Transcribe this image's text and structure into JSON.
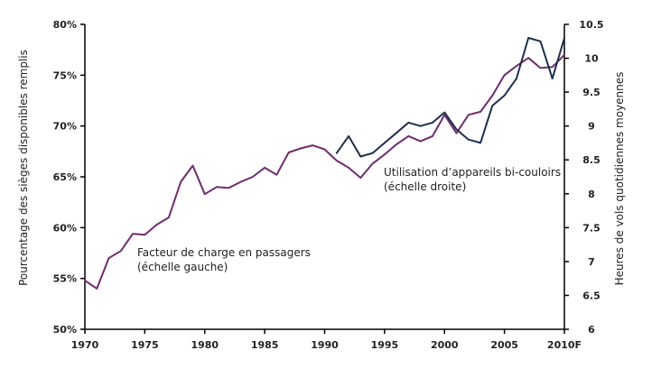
{
  "chart_data": {
    "type": "line",
    "title": "",
    "ylabel_left": "Pourcentage des sièges disponibles remplis",
    "ylabel_right": "Heures de vols quotidiennes moyennes",
    "xlim": [
      1970,
      2010
    ],
    "ylim_left": [
      50,
      80
    ],
    "ylim_right": [
      6,
      10.5
    ],
    "x_ticks": [
      {
        "value": 1970,
        "label": "1970"
      },
      {
        "value": 1975,
        "label": "1975"
      },
      {
        "value": 1980,
        "label": "1980"
      },
      {
        "value": 1985,
        "label": "1985"
      },
      {
        "value": 1990,
        "label": "1990"
      },
      {
        "value": 1995,
        "label": "1995"
      },
      {
        "value": 2000,
        "label": "2000"
      },
      {
        "value": 2005,
        "label": "2005"
      },
      {
        "value": 2010,
        "label": "2010F"
      }
    ],
    "y_ticks_left": [
      {
        "value": 50,
        "label": "50%"
      },
      {
        "value": 55,
        "label": "55%"
      },
      {
        "value": 60,
        "label": "60%"
      },
      {
        "value": 65,
        "label": "65%"
      },
      {
        "value": 70,
        "label": "70%"
      },
      {
        "value": 75,
        "label": "75%"
      },
      {
        "value": 80,
        "label": "80%"
      }
    ],
    "y_ticks_right": [
      {
        "value": 6,
        "label": "6"
      },
      {
        "value": 6.5,
        "label": "6.5"
      },
      {
        "value": 7,
        "label": "7"
      },
      {
        "value": 7.5,
        "label": "7.5"
      },
      {
        "value": 8,
        "label": "8"
      },
      {
        "value": 8.5,
        "label": "8.5"
      },
      {
        "value": 9,
        "label": "9"
      },
      {
        "value": 9.5,
        "label": "9.5"
      },
      {
        "value": 10,
        "label": "10"
      },
      {
        "value": 10.5,
        "label": "10.5"
      }
    ],
    "grid": false,
    "series": [
      {
        "axis": "left",
        "color": "#6e2c6e",
        "x": [
          1970,
          1971,
          1972,
          1973,
          1974,
          1975,
          1976,
          1977,
          1978,
          1979,
          1980,
          1981,
          1982,
          1983,
          1984,
          1985,
          1986,
          1987,
          1988,
          1989,
          1990,
          1991,
          1992,
          1993,
          1994,
          1995,
          1996,
          1997,
          1998,
          1999,
          2000,
          2001,
          2002,
          2003,
          2004,
          2005,
          2006,
          2007,
          2008,
          2009,
          2010
        ],
        "values": [
          54.8,
          54.0,
          57.0,
          57.7,
          59.4,
          59.3,
          60.3,
          61.0,
          64.5,
          66.1,
          63.3,
          64.0,
          63.9,
          64.5,
          65.0,
          65.9,
          65.2,
          67.4,
          67.8,
          68.1,
          67.7,
          66.6,
          65.9,
          64.9,
          66.3,
          67.2,
          68.2,
          69.0,
          68.5,
          69.0,
          71.1,
          69.3,
          71.1,
          71.4,
          73.0,
          75.0,
          75.9,
          76.7,
          75.7,
          75.8,
          77.0
        ]
      },
      {
        "axis": "right",
        "color": "#1f2e4d",
        "x": [
          1991,
          1992,
          1993,
          1994,
          1995,
          1996,
          1997,
          1998,
          1999,
          2000,
          2001,
          2002,
          2003,
          2004,
          2005,
          2006,
          2007,
          2008,
          2009,
          2010
        ],
        "values": [
          8.6,
          8.85,
          8.55,
          8.6,
          8.75,
          8.9,
          9.05,
          9.0,
          9.05,
          9.2,
          8.95,
          8.8,
          8.75,
          9.3,
          9.45,
          9.7,
          10.3,
          10.25,
          9.7,
          10.3
        ]
      }
    ],
    "annotations": [
      {
        "lines": [
          "Facteur de charge en passagers",
          "(échelle gauche)"
        ]
      },
      {
        "lines": [
          "Utilisation d’appareils bi-couloirs",
          "(échelle droite)"
        ]
      }
    ]
  }
}
